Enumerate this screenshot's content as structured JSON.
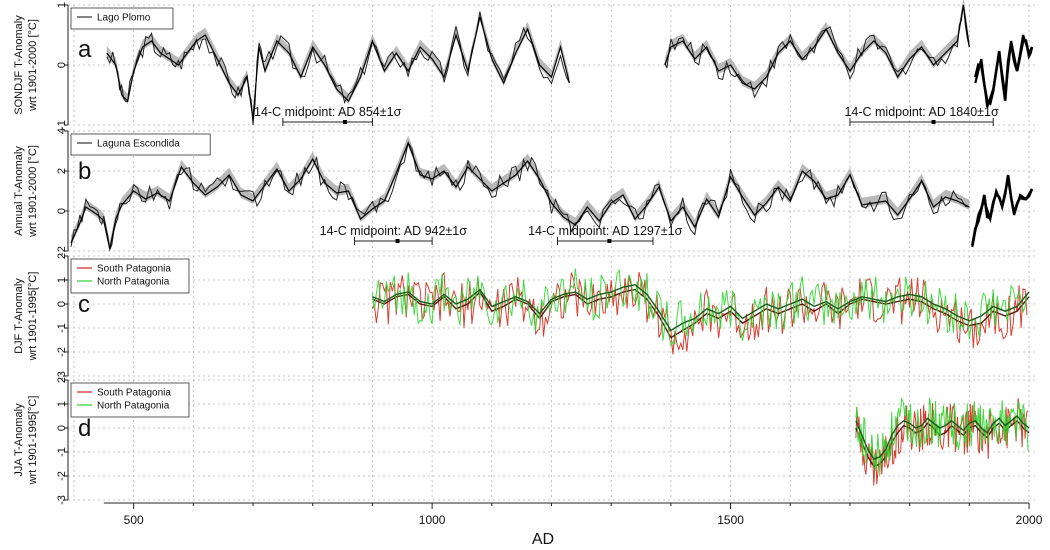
{
  "figure": {
    "xlabel": "AD"
  },
  "chart_data": [
    {
      "type": "line",
      "panel_letter": "a",
      "ylabel": [
        "SONDJF T-Anomaly",
        "wrt 1901-2000 [°C]"
      ],
      "ylim": [
        -1,
        1
      ],
      "yticks": [
        -1,
        0,
        1
      ],
      "xlim": [
        390,
        2010
      ],
      "grid": true,
      "legend": {
        "placement": "top-left",
        "entries": [
          {
            "label": "Lago Plomo",
            "color": "#333333"
          }
        ]
      },
      "series": [
        {
          "name": "Lago Plomo",
          "color": "#222222",
          "style": "thin",
          "x": [
            455,
            470,
            480,
            490,
            500,
            515,
            530,
            545,
            560,
            575,
            590,
            605,
            620,
            640,
            660,
            675,
            690,
            700,
            710,
            720,
            740,
            760,
            780,
            800,
            820,
            840,
            860,
            880,
            900,
            920,
            940,
            960,
            980,
            1000,
            1020,
            1040,
            1060,
            1080,
            1100,
            1120,
            1140,
            1160,
            1180,
            1200,
            1215,
            1230
          ],
          "y": [
            0.2,
            0.0,
            -0.5,
            -0.6,
            -0.1,
            0.3,
            0.4,
            0.2,
            0.1,
            0.0,
            0.2,
            0.4,
            0.5,
            0.1,
            -0.3,
            -0.5,
            -0.2,
            -0.9,
            0.3,
            -0.1,
            0.4,
            0.2,
            -0.2,
            0.3,
            0.0,
            -0.4,
            -0.6,
            -0.2,
            0.4,
            -0.1,
            0.2,
            -0.1,
            0.3,
            0.1,
            -0.2,
            0.5,
            -0.1,
            0.8,
            0.1,
            -0.3,
            0.2,
            0.6,
            0.0,
            -0.2,
            0.3,
            -0.3
          ]
        },
        {
          "name": "",
          "color": "#222222",
          "style": "thin",
          "x": [
            1390,
            1400,
            1420,
            1440,
            1460,
            1480,
            1500,
            1520,
            1540,
            1560,
            1580,
            1600,
            1620,
            1640,
            1660,
            1680,
            1700,
            1720,
            1740,
            1760,
            1780,
            1800,
            1820,
            1840,
            1860,
            1880,
            1890,
            1900
          ],
          "y": [
            0.0,
            0.3,
            0.4,
            0.1,
            0.3,
            -0.1,
            0.0,
            -0.3,
            -0.4,
            -0.2,
            0.2,
            0.4,
            0.1,
            0.3,
            0.6,
            0.2,
            -0.1,
            0.2,
            0.4,
            0.2,
            -0.2,
            0.1,
            0.3,
            0.0,
            0.2,
            0.4,
            1.0,
            0.3
          ]
        },
        {
          "name": "",
          "color": "#000000",
          "style": "thick",
          "x": [
            1910,
            1920,
            1930,
            1940,
            1950,
            1960,
            1970,
            1980,
            1990,
            2000,
            2005
          ],
          "y": [
            -0.3,
            0.1,
            -0.7,
            -0.4,
            0.2,
            -0.5,
            0.4,
            -0.1,
            0.5,
            0.2,
            0.3
          ]
        }
      ],
      "annotations": [
        {
          "text": "14-C midpoint: AD 854±1σ",
          "range": [
            750,
            900
          ],
          "mid": 854,
          "y": -0.95
        },
        {
          "text": "14-C midpoint: AD 1840±1σ",
          "range": [
            1700,
            1940
          ],
          "mid": 1840,
          "y": -0.95
        }
      ]
    },
    {
      "type": "line",
      "panel_letter": "b",
      "ylabel": [
        "Annual T-Anomaly",
        "wrt 1901-2000 [°C]"
      ],
      "ylim": [
        -2,
        4
      ],
      "yticks": [
        -2,
        0,
        2,
        4
      ],
      "xlim": [
        390,
        2010
      ],
      "grid": true,
      "legend": {
        "placement": "top-left",
        "entries": [
          {
            "label": "Laguna Escondida",
            "color": "#333333"
          }
        ]
      },
      "series": [
        {
          "name": "Laguna Escondida",
          "color": "#222222",
          "style": "thin",
          "x": [
            395,
            410,
            420,
            440,
            450,
            460,
            470,
            480,
            500,
            520,
            540,
            560,
            580,
            600,
            620,
            640,
            660,
            680,
            700,
            720,
            740,
            760,
            780,
            800,
            820,
            840,
            860,
            880,
            900,
            920,
            940,
            960,
            980,
            1000,
            1020,
            1040,
            1060,
            1080,
            1100,
            1120,
            1140,
            1160,
            1180,
            1200,
            1220,
            1240,
            1260,
            1280,
            1300,
            1320,
            1340,
            1360,
            1380,
            1400,
            1420,
            1440,
            1460,
            1480,
            1500,
            1520,
            1540,
            1560,
            1580,
            1600,
            1620,
            1640,
            1660,
            1680,
            1700,
            1720,
            1740,
            1760,
            1780,
            1800,
            1820,
            1840,
            1860,
            1880,
            1900
          ],
          "y": [
            -1.6,
            -0.6,
            0.2,
            -0.2,
            -0.5,
            -1.9,
            -0.4,
            0.3,
            1.0,
            0.6,
            0.9,
            0.5,
            2.2,
            1.4,
            0.8,
            1.2,
            1.8,
            0.8,
            0.5,
            1.3,
            2.1,
            1.0,
            1.6,
            2.6,
            1.4,
            0.9,
            1.0,
            -0.4,
            0.1,
            0.5,
            1.9,
            3.4,
            1.8,
            1.6,
            2.0,
            1.2,
            2.2,
            1.6,
            1.0,
            1.4,
            1.8,
            2.5,
            1.6,
            0.4,
            -0.3,
            -0.7,
            0.2,
            -0.5,
            0.4,
            0.8,
            -0.4,
            0.3,
            1.2,
            -0.5,
            0.2,
            -0.8,
            0.6,
            -0.3,
            1.7,
            0.7,
            -0.2,
            0.4,
            1.2,
            0.5,
            2.0,
            1.5,
            0.6,
            0.8,
            1.8,
            0.3,
            0.4,
            0.5,
            -0.2,
            0.6,
            1.5,
            0.2,
            0.7,
            0.5,
            0.2
          ]
        },
        {
          "name": "",
          "color": "#000000",
          "style": "thick",
          "x": [
            1905,
            1915,
            1925,
            1935,
            1945,
            1955,
            1965,
            1975,
            1985,
            1995,
            2005
          ],
          "y": [
            -1.8,
            -0.2,
            0.5,
            -0.4,
            1.0,
            0.3,
            1.6,
            -0.2,
            0.8,
            0.6,
            1.1
          ]
        }
      ],
      "annotations": [
        {
          "text": "14-C midpoint: AD 942±1σ",
          "range": [
            870,
            1000
          ],
          "mid": 942,
          "y": -1.5
        },
        {
          "text": "14-C midpoint: AD 1297±1σ",
          "range": [
            1210,
            1370
          ],
          "mid": 1297,
          "y": -1.5
        }
      ]
    },
    {
      "type": "line",
      "panel_letter": "c",
      "ylabel": [
        "DJF T-Anomaly",
        "wrt 1901-1995[°C]"
      ],
      "ylim": [
        -3,
        2
      ],
      "yticks": [
        -3,
        -2,
        -1,
        0,
        1,
        2
      ],
      "xlim": [
        390,
        2010
      ],
      "grid": true,
      "legend": {
        "placement": "top-left",
        "entries": [
          {
            "label": "South Patagonia",
            "color": "#cc2222"
          },
          {
            "label": "North Patagonia",
            "color": "#33cc33"
          }
        ]
      },
      "series": [
        {
          "name": "South Patagonia",
          "color": "#d42a1c",
          "style": "noisy",
          "x": [
            900,
            920,
            940,
            960,
            980,
            1000,
            1020,
            1040,
            1060,
            1080,
            1100,
            1120,
            1140,
            1160,
            1180,
            1200,
            1220,
            1240,
            1260,
            1280,
            1300,
            1320,
            1340,
            1360,
            1380,
            1400,
            1420,
            1440,
            1460,
            1480,
            1500,
            1520,
            1540,
            1560,
            1580,
            1600,
            1620,
            1640,
            1660,
            1680,
            1700,
            1720,
            1740,
            1760,
            1780,
            1800,
            1820,
            1840,
            1860,
            1880,
            1900,
            1920,
            1940,
            1960,
            1980,
            2000
          ],
          "y": [
            0.2,
            0.0,
            0.3,
            0.4,
            0.0,
            -0.1,
            0.3,
            -0.2,
            0.0,
            0.5,
            -0.3,
            -0.1,
            0.2,
            0.0,
            -0.6,
            0.1,
            0.3,
            0.4,
            0.0,
            0.2,
            0.3,
            0.5,
            0.6,
            0.2,
            -0.5,
            -1.4,
            -1.1,
            -0.8,
            -0.4,
            -0.6,
            -0.3,
            -0.8,
            -0.5,
            -0.2,
            -0.4,
            -0.2,
            0.0,
            -0.3,
            0.0,
            -0.4,
            0.0,
            0.2,
            0.1,
            0.0,
            0.1,
            0.2,
            0.1,
            -0.2,
            -0.4,
            -0.7,
            -0.9,
            -0.8,
            -0.3,
            -0.5,
            -0.3,
            0.3
          ]
        }
      ],
      "series_extra": [
        {
          "name": "North Patagonia",
          "color": "#2dd62d",
          "style": "noisy",
          "x": [
            900,
            920,
            940,
            960,
            980,
            1000,
            1020,
            1040,
            1060,
            1080,
            1100,
            1120,
            1140,
            1160,
            1180,
            1200,
            1220,
            1240,
            1260,
            1280,
            1300,
            1320,
            1340,
            1360,
            1380,
            1400,
            1420,
            1440,
            1460,
            1480,
            1500,
            1520,
            1540,
            1560,
            1580,
            1600,
            1620,
            1640,
            1660,
            1680,
            1700,
            1720,
            1740,
            1760,
            1780,
            1800,
            1820,
            1840,
            1860,
            1880,
            1900,
            1920,
            1940,
            1960,
            1980,
            2000
          ],
          "y": [
            0.3,
            0.1,
            0.4,
            0.5,
            0.1,
            0.0,
            0.4,
            0.0,
            0.2,
            0.6,
            -0.1,
            0.1,
            0.3,
            0.1,
            -0.4,
            0.2,
            0.4,
            0.5,
            0.2,
            0.4,
            0.5,
            0.7,
            0.8,
            0.4,
            -0.3,
            -1.1,
            -0.8,
            -0.6,
            -0.2,
            -0.4,
            -0.1,
            -0.6,
            -0.3,
            0.0,
            -0.2,
            0.0,
            0.2,
            -0.1,
            0.1,
            -0.2,
            0.1,
            0.3,
            0.2,
            0.1,
            0.3,
            0.4,
            0.3,
            0.0,
            -0.2,
            -0.5,
            -0.7,
            -0.5,
            -0.1,
            -0.3,
            -0.1,
            0.5
          ]
        }
      ]
    },
    {
      "type": "line",
      "panel_letter": "d",
      "ylabel": [
        "JJA T-Anomaly",
        "wrt 1901-1995[°C]"
      ],
      "ylim": [
        -3,
        2
      ],
      "yticks": [
        -3,
        -2,
        -1,
        0,
        1,
        2
      ],
      "xlim": [
        390,
        2010
      ],
      "grid": true,
      "legend": {
        "placement": "top-left",
        "entries": [
          {
            "label": "South Patagonia",
            "color": "#cc2222"
          },
          {
            "label": "North Patagonia",
            "color": "#33cc33"
          }
        ]
      },
      "series": [
        {
          "name": "South Patagonia",
          "color": "#d42a1c",
          "style": "noisy",
          "x": [
            1710,
            1720,
            1730,
            1740,
            1750,
            1760,
            1770,
            1780,
            1790,
            1800,
            1810,
            1820,
            1830,
            1840,
            1850,
            1860,
            1870,
            1880,
            1890,
            1900,
            1910,
            1920,
            1930,
            1940,
            1950,
            1960,
            1970,
            1980,
            1990,
            2000
          ],
          "y": [
            0.0,
            -0.6,
            -1.2,
            -1.6,
            -1.5,
            -1.2,
            -0.6,
            -0.2,
            0.1,
            0.0,
            -0.2,
            -0.1,
            0.2,
            0.0,
            -0.3,
            -0.2,
            0.1,
            -0.1,
            -0.3,
            0.0,
            0.1,
            -0.2,
            -0.4,
            0.0,
            0.2,
            -0.1,
            0.1,
            0.3,
            0.0,
            -0.2
          ]
        }
      ],
      "series_extra": [
        {
          "name": "North Patagonia",
          "color": "#2dd62d",
          "style": "noisy",
          "x": [
            1710,
            1720,
            1730,
            1740,
            1750,
            1760,
            1770,
            1780,
            1790,
            1800,
            1810,
            1820,
            1830,
            1840,
            1850,
            1860,
            1870,
            1880,
            1890,
            1900,
            1910,
            1920,
            1930,
            1940,
            1950,
            1960,
            1970,
            1980,
            1990,
            2000
          ],
          "y": [
            0.3,
            -0.3,
            -0.9,
            -1.3,
            -1.2,
            -0.9,
            -0.3,
            0.1,
            0.3,
            0.2,
            0.0,
            0.1,
            0.4,
            0.2,
            0.0,
            0.1,
            0.3,
            0.1,
            -0.1,
            0.2,
            0.3,
            0.0,
            -0.2,
            0.2,
            0.4,
            0.1,
            0.3,
            0.5,
            0.2,
            0.0
          ]
        }
      ]
    }
  ],
  "xaxis": {
    "ticks": [
      500,
      1000,
      1500,
      2000
    ]
  }
}
